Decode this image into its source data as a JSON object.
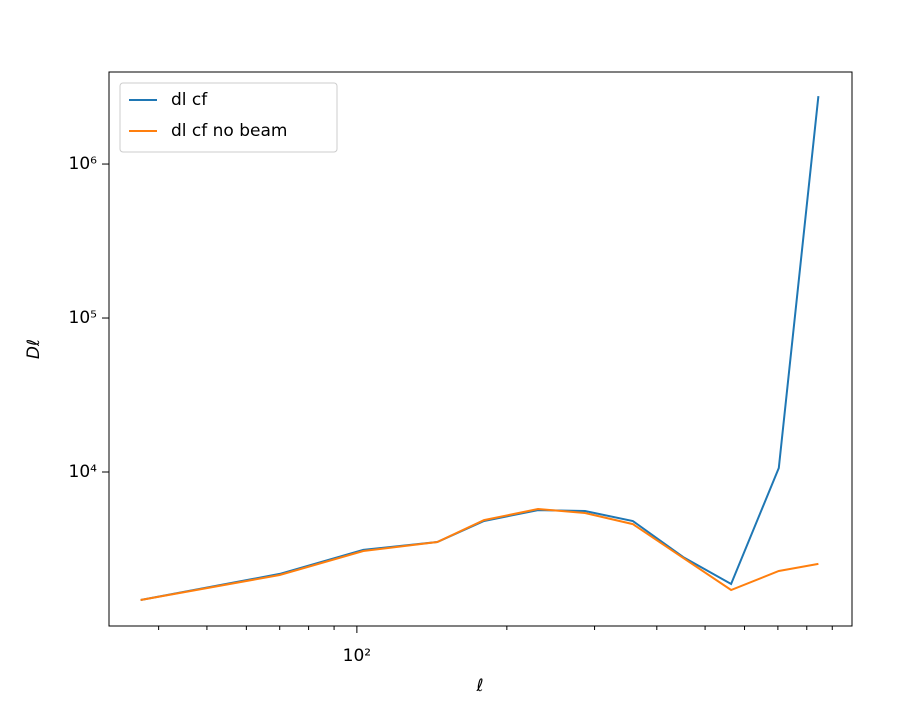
{
  "chart_data": {
    "type": "line",
    "x_label": "ℓ",
    "y_label": "Dℓ",
    "log_x": true,
    "log_y": true,
    "legend": "upper left",
    "xlim": [
      31.8,
      986
    ],
    "ylim": [
      1000,
      3960000
    ],
    "xticks": [
      {
        "value": 100,
        "label": "10²"
      }
    ],
    "xminorticks": [
      40,
      50,
      60,
      70,
      80,
      90,
      200,
      300,
      400,
      500,
      600,
      700,
      800,
      900
    ],
    "yticks": [
      {
        "value": 10000,
        "label": "10⁴"
      },
      {
        "value": 100000,
        "label": "10⁵"
      },
      {
        "value": 1000000,
        "label": "10⁶"
      }
    ],
    "x": [
      36.8,
      70,
      103,
      145,
      180,
      231,
      287,
      358,
      452,
      564,
      703,
      844
    ],
    "series": [
      {
        "name": "dl cf",
        "color": "#1f77b4",
        "values": [
          1475,
          2180,
          3120,
          3510,
          4810,
          5660,
          5580,
          4810,
          2800,
          1875,
          10620,
          2760000
        ]
      },
      {
        "name": "dl cf no beam",
        "color": "#ff7f0e",
        "values": [
          1475,
          2144,
          3070,
          3510,
          4870,
          5755,
          5420,
          4590,
          2770,
          1714,
          2275,
          2530
        ]
      }
    ]
  }
}
